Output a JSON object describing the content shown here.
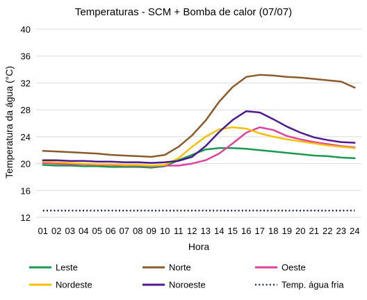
{
  "chart_data": {
    "type": "line",
    "title": "Temperaturas - SCM + Bomba de calor (07/07)",
    "xlabel": "Hora",
    "ylabel": "Temperatura da água (°C)",
    "ylim": [
      12,
      40
    ],
    "yticks": [
      12,
      16,
      20,
      24,
      28,
      32,
      36,
      40
    ],
    "grid": "horizontal",
    "legend_position": "bottom",
    "categories": [
      "01",
      "02",
      "03",
      "04",
      "05",
      "06",
      "07",
      "08",
      "09",
      "10",
      "11",
      "12",
      "13",
      "14",
      "15",
      "16",
      "17",
      "18",
      "19",
      "20",
      "21",
      "22",
      "23",
      "24"
    ],
    "series": [
      {
        "name": "Leste",
        "color": "#1a9850",
        "style": "solid",
        "values": [
          19.8,
          19.7,
          19.7,
          19.6,
          19.6,
          19.5,
          19.5,
          19.5,
          19.4,
          19.6,
          20.5,
          21.3,
          22.1,
          22.3,
          22.3,
          22.2,
          22.0,
          21.8,
          21.6,
          21.4,
          21.2,
          21.1,
          20.9,
          20.8
        ]
      },
      {
        "name": "Norte",
        "color": "#8c5a2b",
        "style": "solid",
        "values": [
          21.9,
          21.8,
          21.7,
          21.6,
          21.5,
          21.3,
          21.2,
          21.1,
          21.0,
          21.3,
          22.5,
          24.2,
          26.4,
          29.2,
          31.4,
          32.9,
          33.2,
          33.1,
          32.9,
          32.8,
          32.6,
          32.4,
          32.2,
          31.3
        ]
      },
      {
        "name": "Oeste",
        "color": "#e040a0",
        "style": "solid",
        "values": [
          20.1,
          20.0,
          19.9,
          19.9,
          19.8,
          19.8,
          19.7,
          19.7,
          19.6,
          19.7,
          19.7,
          20.0,
          20.5,
          21.5,
          23.0,
          24.6,
          25.4,
          25.0,
          24.1,
          23.6,
          23.2,
          22.9,
          22.6,
          22.4
        ]
      },
      {
        "name": "Nordeste",
        "color": "#f5c000",
        "style": "solid",
        "values": [
          20.3,
          20.2,
          20.1,
          20.0,
          19.9,
          19.9,
          19.8,
          19.8,
          19.7,
          19.8,
          20.8,
          22.5,
          24.0,
          25.1,
          25.4,
          25.2,
          24.5,
          24.0,
          23.6,
          23.3,
          23.0,
          22.7,
          22.5,
          22.3
        ]
      },
      {
        "name": "Noroeste",
        "color": "#4b1a8c",
        "style": "solid",
        "values": [
          20.5,
          20.5,
          20.4,
          20.4,
          20.3,
          20.3,
          20.2,
          20.2,
          20.1,
          20.2,
          20.4,
          21.0,
          22.6,
          24.7,
          26.5,
          27.8,
          27.6,
          26.6,
          25.5,
          24.6,
          23.9,
          23.5,
          23.2,
          23.1
        ]
      },
      {
        "name": "Temp. água fria",
        "color": "#1f2a5a",
        "style": "dotted",
        "values": [
          13.0,
          13.0,
          13.0,
          13.0,
          13.0,
          13.0,
          13.0,
          13.0,
          13.0,
          13.0,
          13.0,
          13.0,
          13.0,
          13.0,
          13.0,
          13.0,
          13.0,
          13.0,
          13.0,
          13.0,
          13.0,
          13.0,
          13.0,
          13.0
        ]
      }
    ]
  }
}
